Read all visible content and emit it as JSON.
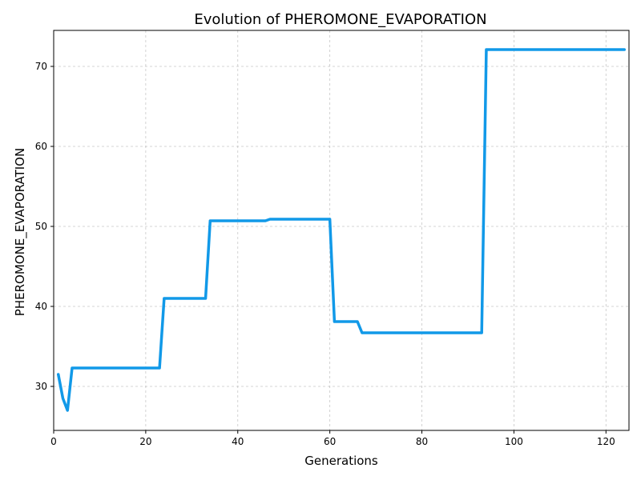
{
  "chart_data": {
    "type": "line",
    "title": "Evolution of PHEROMONE_EVAPORATION",
    "xlabel": "Generations",
    "ylabel": "PHEROMONE_EVAPORATION",
    "xlim": [
      0,
      125
    ],
    "ylim": [
      24.5,
      74.5
    ],
    "xticks": [
      0,
      20,
      40,
      60,
      80,
      100,
      120
    ],
    "yticks": [
      30,
      40,
      50,
      60,
      70
    ],
    "grid": true,
    "series": [
      {
        "color": "#1199e8",
        "x": [
          1,
          2,
          3,
          4,
          23,
          24,
          33,
          34,
          46,
          47,
          60,
          61,
          66,
          67,
          93,
          94,
          124
        ],
        "y": [
          31.5,
          28.5,
          27.0,
          32.3,
          32.3,
          41.0,
          41.0,
          50.7,
          50.7,
          50.9,
          50.9,
          38.1,
          38.1,
          36.7,
          36.7,
          72.1,
          72.1
        ]
      }
    ]
  }
}
